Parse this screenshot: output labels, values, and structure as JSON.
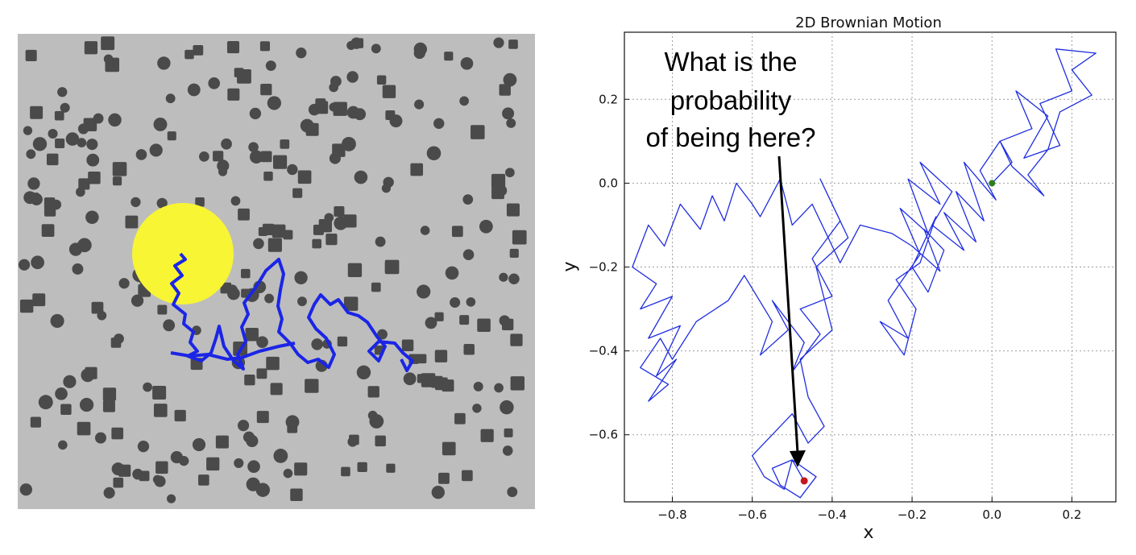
{
  "simulation": {
    "background": "#bdbdbd",
    "particle_color": "#4a4a4a",
    "target_color": "#f8f534",
    "path_color": "#1b25e6"
  },
  "chart_data": {
    "type": "line",
    "title": "2D Brownian Motion",
    "xlabel": "x",
    "ylabel": "y",
    "xlim": [
      -0.92,
      0.31
    ],
    "ylim": [
      -0.76,
      0.36
    ],
    "xticks": [
      -0.8,
      -0.6,
      -0.4,
      -0.2,
      0.0,
      0.2
    ],
    "xtick_labels": [
      "−0.8",
      "−0.6",
      "−0.4",
      "−0.2",
      "0.0",
      "0.2"
    ],
    "yticks": [
      0.2,
      0.0,
      -0.2,
      -0.4,
      -0.6
    ],
    "ytick_labels": [
      "0.2",
      "0.0",
      "−0.2",
      "−0.4",
      "−0.6"
    ],
    "grid": true,
    "series": [
      {
        "color": "#1f2de0",
        "x": [
          0.0,
          0.05,
          0.02,
          0.1,
          0.06,
          0.14,
          0.08,
          0.17,
          0.12,
          0.2,
          0.16,
          0.26,
          0.2,
          0.25,
          0.17,
          0.14,
          0.09,
          0.13,
          0.05,
          0.02,
          -0.03,
          0.01,
          -0.07,
          -0.02,
          -0.09,
          -0.04,
          -0.12,
          -0.07,
          -0.15,
          -0.1,
          -0.18,
          -0.13,
          -0.21,
          -0.16,
          -0.23,
          -0.18,
          -0.26,
          -0.21,
          -0.28,
          -0.22,
          -0.19,
          -0.24,
          -0.18,
          -0.14,
          -0.2,
          -0.16,
          -0.12,
          -0.17,
          -0.13,
          -0.2,
          -0.25,
          -0.33,
          -0.38,
          -0.45,
          -0.5,
          -0.53,
          -0.58,
          -0.6,
          -0.64,
          -0.67,
          -0.7,
          -0.73,
          -0.78,
          -0.82,
          -0.86,
          -0.9,
          -0.84,
          -0.88,
          -0.8,
          -0.86,
          -0.78,
          -0.84,
          -0.79,
          -0.86,
          -0.81,
          -0.88,
          -0.83,
          -0.8,
          -0.74,
          -0.66,
          -0.62,
          -0.55,
          -0.58,
          -0.51,
          -0.55,
          -0.47,
          -0.5,
          -0.43,
          -0.48,
          -0.4,
          -0.45,
          -0.38,
          -0.43,
          -0.36,
          -0.44,
          -0.4,
          -0.48,
          -0.46,
          -0.42,
          -0.46,
          -0.5,
          -0.55,
          -0.6,
          -0.57,
          -0.52,
          -0.5,
          -0.44,
          -0.48,
          -0.53,
          -0.55,
          -0.5,
          -0.47
        ],
        "y": [
          0.0,
          0.05,
          0.1,
          0.13,
          0.22,
          0.16,
          0.06,
          0.09,
          0.19,
          0.22,
          0.32,
          0.31,
          0.27,
          0.21,
          0.17,
          0.08,
          0.02,
          -0.03,
          0.04,
          0.1,
          0.03,
          -0.04,
          0.05,
          -0.09,
          -0.02,
          -0.14,
          -0.07,
          -0.16,
          -0.1,
          -0.02,
          0.05,
          -0.05,
          0.01,
          -0.12,
          -0.06,
          -0.17,
          -0.28,
          -0.37,
          -0.33,
          -0.41,
          -0.3,
          -0.23,
          -0.19,
          -0.08,
          -0.2,
          -0.26,
          -0.16,
          -0.11,
          -0.21,
          -0.15,
          -0.12,
          -0.1,
          -0.19,
          -0.05,
          -0.1,
          0.01,
          -0.08,
          -0.05,
          0.0,
          -0.09,
          -0.03,
          -0.11,
          -0.05,
          -0.15,
          -0.1,
          -0.2,
          -0.24,
          -0.3,
          -0.27,
          -0.37,
          -0.34,
          -0.46,
          -0.42,
          -0.52,
          -0.48,
          -0.44,
          -0.37,
          -0.42,
          -0.33,
          -0.28,
          -0.22,
          -0.33,
          -0.41,
          -0.35,
          -0.28,
          -0.38,
          -0.45,
          -0.36,
          -0.3,
          -0.27,
          -0.18,
          -0.09,
          0.01,
          -0.13,
          -0.2,
          -0.35,
          -0.42,
          -0.51,
          -0.58,
          -0.62,
          -0.55,
          -0.6,
          -0.65,
          -0.7,
          -0.73,
          -0.66,
          -0.7,
          -0.75,
          -0.72,
          -0.68,
          -0.66,
          -0.71
        ]
      }
    ],
    "start_point": {
      "x": 0.0,
      "y": 0.0,
      "color": "#2e7d1e"
    },
    "end_point": {
      "x": -0.47,
      "y": -0.71,
      "color": "#c4161c"
    },
    "annotation": {
      "lines": [
        "What is the",
        "probability",
        "of being here?"
      ]
    }
  }
}
